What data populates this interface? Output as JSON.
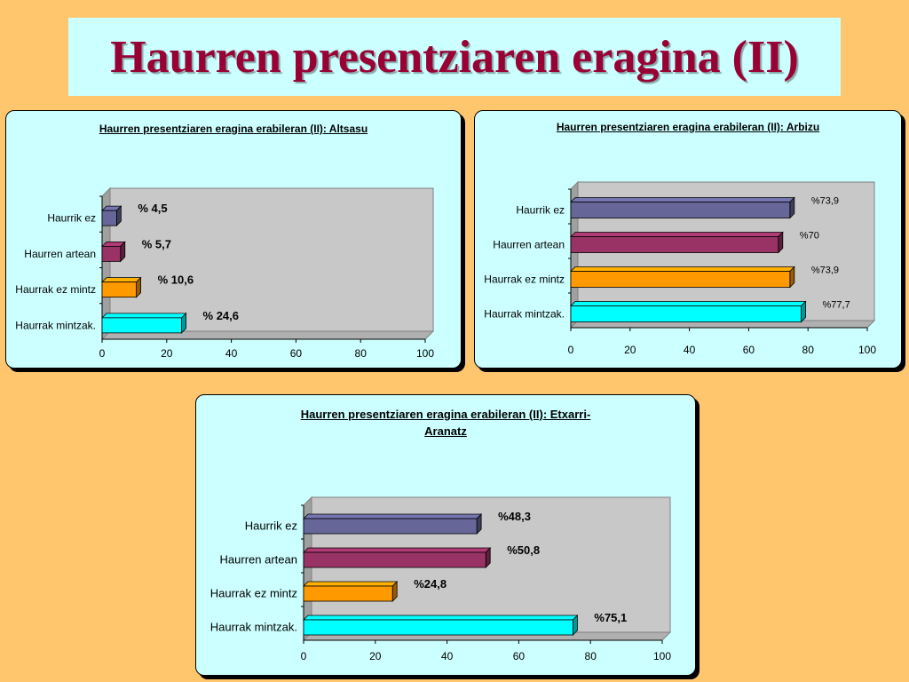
{
  "slide": {
    "title": "Haurren presentziaren eragina (II)"
  },
  "colors": {
    "background": "#ffc66e",
    "panel": "#ccffff",
    "plot_area": "#c8c8c8",
    "title_text": "#990033"
  },
  "chart_data": [
    {
      "type": "bar",
      "orientation": "horizontal",
      "title": "Haurren presentziaren eragina erabileran (II): Altsasu",
      "categories": [
        "Haurrik ez",
        "Haurren artean",
        "Haurrak ez mintz",
        "Haurrak mintzak."
      ],
      "values": [
        4.5,
        5.7,
        10.6,
        24.6
      ],
      "data_labels": [
        "% 4,5",
        "% 5,7",
        "% 10,6",
        "% 24,6"
      ],
      "bar_colors": [
        "#666699",
        "#993366",
        "#ff9900",
        "#00ffff"
      ],
      "xlim": [
        0,
        100
      ],
      "xticks": [
        "0",
        "20",
        "40",
        "60",
        "80",
        "100"
      ],
      "xlabel": "",
      "ylabel": "",
      "grid": false
    },
    {
      "type": "bar",
      "orientation": "horizontal",
      "title": "Haurren presentziaren eragina erabileran (II): Arbizu",
      "categories": [
        "Haurrik ez",
        "Haurren artean",
        "Haurrak ez mintz",
        "Haurrak mintzak."
      ],
      "values": [
        73.9,
        70,
        73.9,
        77.7
      ],
      "data_labels": [
        "%73,9",
        "%70",
        "%73,9",
        "%77,7"
      ],
      "bar_colors": [
        "#666699",
        "#993366",
        "#ff9900",
        "#00ffff"
      ],
      "xlim": [
        0,
        100
      ],
      "xticks": [
        "0",
        "20",
        "40",
        "60",
        "80",
        "100"
      ],
      "xlabel": "",
      "ylabel": "",
      "grid": false
    },
    {
      "type": "bar",
      "orientation": "horizontal",
      "title": "Haurren presentziaren eragina erabileran (II): Etxarri-Aranatz",
      "title_lines": [
        "Haurren presentziaren eragina erabileran (II): Etxarri-",
        "Aranatz"
      ],
      "categories": [
        "Haurrik ez",
        "Haurren artean",
        "Haurrak ez mintz",
        "Haurrak mintzak."
      ],
      "values": [
        48.3,
        50.8,
        24.8,
        75.1
      ],
      "data_labels": [
        "%48,3",
        "%50,8",
        "%24,8",
        "%75,1"
      ],
      "bar_colors": [
        "#666699",
        "#993366",
        "#ff9900",
        "#00ffff"
      ],
      "xlim": [
        0,
        100
      ],
      "xticks": [
        "0",
        "20",
        "40",
        "60",
        "80",
        "100"
      ],
      "xlabel": "",
      "ylabel": "",
      "grid": false
    }
  ]
}
